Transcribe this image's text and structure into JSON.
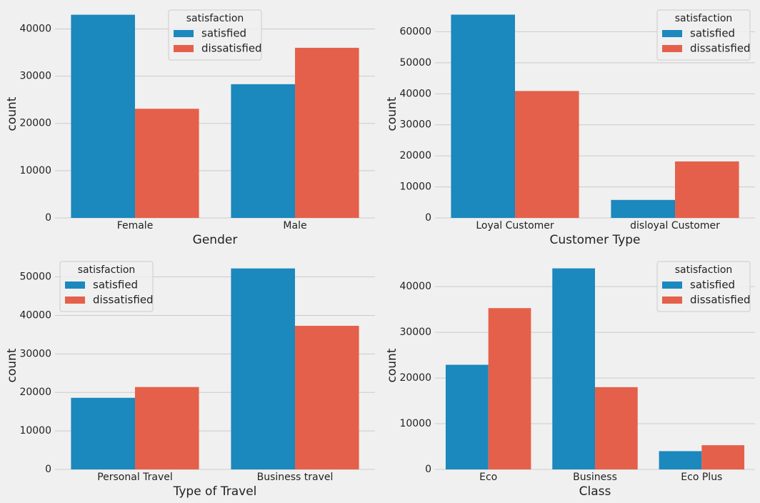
{
  "chart_data": [
    {
      "type": "bar",
      "xlabel": "Gender",
      "ylabel": "count",
      "legend_title": "satisfaction",
      "legend": "upper center",
      "categories": [
        "Female",
        "Male"
      ],
      "series": [
        {
          "name": "satisfied",
          "color": "#1b88be",
          "values": [
            43000,
            28300
          ]
        },
        {
          "name": "dissatisfied",
          "color": "#e5604a",
          "values": [
            23100,
            36000
          ]
        }
      ],
      "ylim": [
        0,
        44000
      ],
      "yticks": [
        0,
        10000,
        20000,
        30000,
        40000
      ],
      "grid": true
    },
    {
      "type": "bar",
      "xlabel": "Customer Type",
      "ylabel": "count",
      "legend_title": "satisfaction",
      "legend": "upper right",
      "categories": [
        "Loyal Customer",
        "disloyal Customer"
      ],
      "series": [
        {
          "name": "satisfied",
          "color": "#1b88be",
          "values": [
            65500,
            5800
          ]
        },
        {
          "name": "dissatisfied",
          "color": "#e5604a",
          "values": [
            40900,
            18200
          ]
        }
      ],
      "ylim": [
        0,
        67000
      ],
      "yticks": [
        0,
        10000,
        20000,
        30000,
        40000,
        50000,
        60000
      ],
      "grid": true
    },
    {
      "type": "bar",
      "xlabel": "Type of Travel",
      "ylabel": "count",
      "legend_title": "satisfaction",
      "legend": "upper left",
      "categories": [
        "Personal Travel",
        "Business travel"
      ],
      "series": [
        {
          "name": "satisfied",
          "color": "#1b88be",
          "values": [
            18600,
            52200
          ]
        },
        {
          "name": "dissatisfied",
          "color": "#e5604a",
          "values": [
            21400,
            37300
          ]
        }
      ],
      "ylim": [
        0,
        54000
      ],
      "yticks": [
        0,
        10000,
        20000,
        30000,
        40000,
        50000
      ],
      "grid": true
    },
    {
      "type": "bar",
      "xlabel": "Class",
      "ylabel": "count",
      "legend_title": "satisfaction",
      "legend": "upper right",
      "categories": [
        "Eco",
        "Business",
        "Eco Plus"
      ],
      "series": [
        {
          "name": "satisfied",
          "color": "#1b88be",
          "values": [
            22900,
            44000,
            4000
          ]
        },
        {
          "name": "dissatisfied",
          "color": "#e5604a",
          "values": [
            35300,
            18000,
            5300
          ]
        }
      ],
      "ylim": [
        0,
        45500
      ],
      "yticks": [
        0,
        10000,
        20000,
        30000,
        40000
      ],
      "grid": true
    }
  ]
}
